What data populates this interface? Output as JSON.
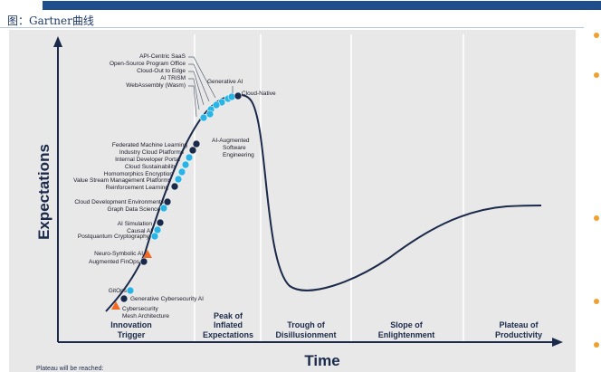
{
  "caption": "图：Gartner曲线",
  "chart_data": {
    "type": "diagram",
    "y_axis_label": "Expectations",
    "x_axis_label": "Time",
    "phases": [
      "Innovation Trigger",
      "Peak of Inflated Expectations",
      "Trough of Disillusionment",
      "Slope of Enlightenment",
      "Plateau of Productivity"
    ],
    "footer_text": "Plateau will be reached:",
    "points": [
      {
        "label": "API-Centric SaaS",
        "color": "cyan"
      },
      {
        "label": "Open-Source Program Office",
        "color": "cyan"
      },
      {
        "label": "Cloud-Out to Edge",
        "color": "cyan"
      },
      {
        "label": "AI TRiSM",
        "color": "cyan"
      },
      {
        "label": "WebAssembly (Wasm)",
        "color": "cyan"
      },
      {
        "label": "Generative AI",
        "color": "cyan"
      },
      {
        "label": "Cloud-Native",
        "color": "navy"
      },
      {
        "label": "AI-Augmented Software Engineering",
        "color": "cyan"
      },
      {
        "label": "Federated Machine Learning",
        "color": "navy"
      },
      {
        "label": "Industry Cloud Platforms",
        "color": "navy"
      },
      {
        "label": "Internal Developer Portal",
        "color": "cyan"
      },
      {
        "label": "Cloud Sustainability",
        "color": "cyan"
      },
      {
        "label": "Homomorphics Encryption",
        "color": "cyan"
      },
      {
        "label": "Value Stream Management Platforms",
        "color": "cyan"
      },
      {
        "label": "Reinforcement Learning",
        "color": "navy"
      },
      {
        "label": "Cloud Development Environments",
        "color": "navy"
      },
      {
        "label": "Graph Data Science",
        "color": "cyan"
      },
      {
        "label": "AI Simulation",
        "color": "navy"
      },
      {
        "label": "Causal AI",
        "color": "cyan"
      },
      {
        "label": "Postquantum Cryptography",
        "color": "cyan"
      },
      {
        "label": "Neuro-Symbolic AI",
        "color": "orange"
      },
      {
        "label": "Augmented FinOps",
        "color": "navy"
      },
      {
        "label": "GitOps",
        "color": "cyan"
      },
      {
        "label": "Generative Cybersecurity AI",
        "color": "navy"
      },
      {
        "label": "Cybersecurity Mesh Architecture",
        "color": "orange"
      }
    ]
  }
}
